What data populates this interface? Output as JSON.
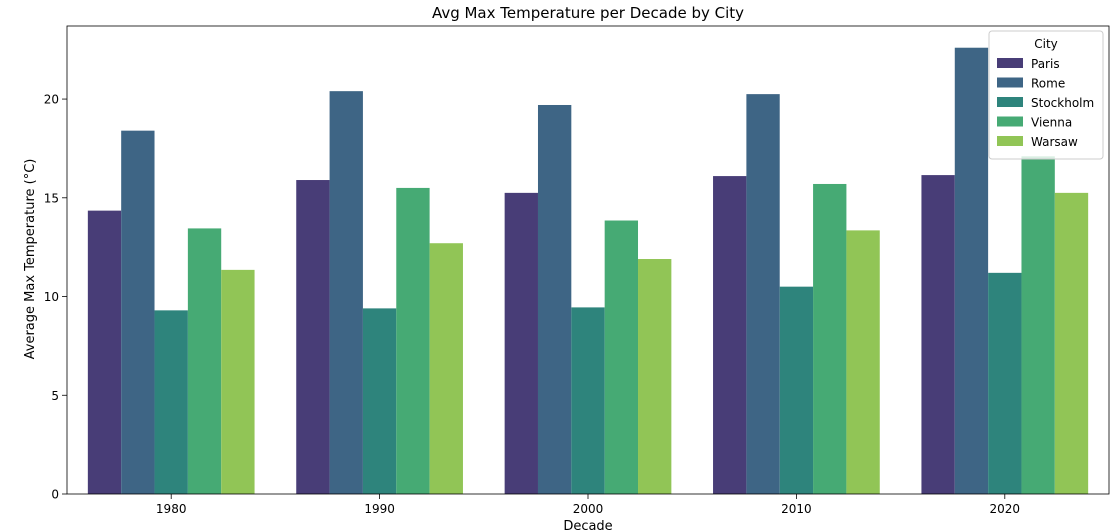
{
  "chart_data": {
    "type": "bar",
    "title": "Avg Max Temperature per Decade by City",
    "xlabel": "Decade",
    "ylabel": "Average Max Temperature (°C)",
    "categories": [
      "1980",
      "1990",
      "2000",
      "2010",
      "2020"
    ],
    "ylim": [
      0,
      23.7
    ],
    "yticks": [
      0,
      5,
      10,
      15,
      20
    ],
    "grid": false,
    "legend": {
      "title": "City",
      "position": "top-right"
    },
    "series": [
      {
        "name": "Paris",
        "color": "#483d77",
        "values": [
          14.35,
          15.9,
          15.25,
          16.1,
          16.15
        ]
      },
      {
        "name": "Rome",
        "color": "#3e6585",
        "values": [
          18.4,
          20.4,
          19.7,
          20.25,
          22.6
        ]
      },
      {
        "name": "Stockholm",
        "color": "#2e847c",
        "values": [
          9.3,
          9.4,
          9.45,
          10.5,
          11.2
        ]
      },
      {
        "name": "Vienna",
        "color": "#46aa74",
        "values": [
          13.45,
          15.5,
          13.85,
          15.7,
          17.1
        ]
      },
      {
        "name": "Warsaw",
        "color": "#91c556",
        "values": [
          11.35,
          12.7,
          11.9,
          13.35,
          15.25
        ]
      }
    ]
  }
}
